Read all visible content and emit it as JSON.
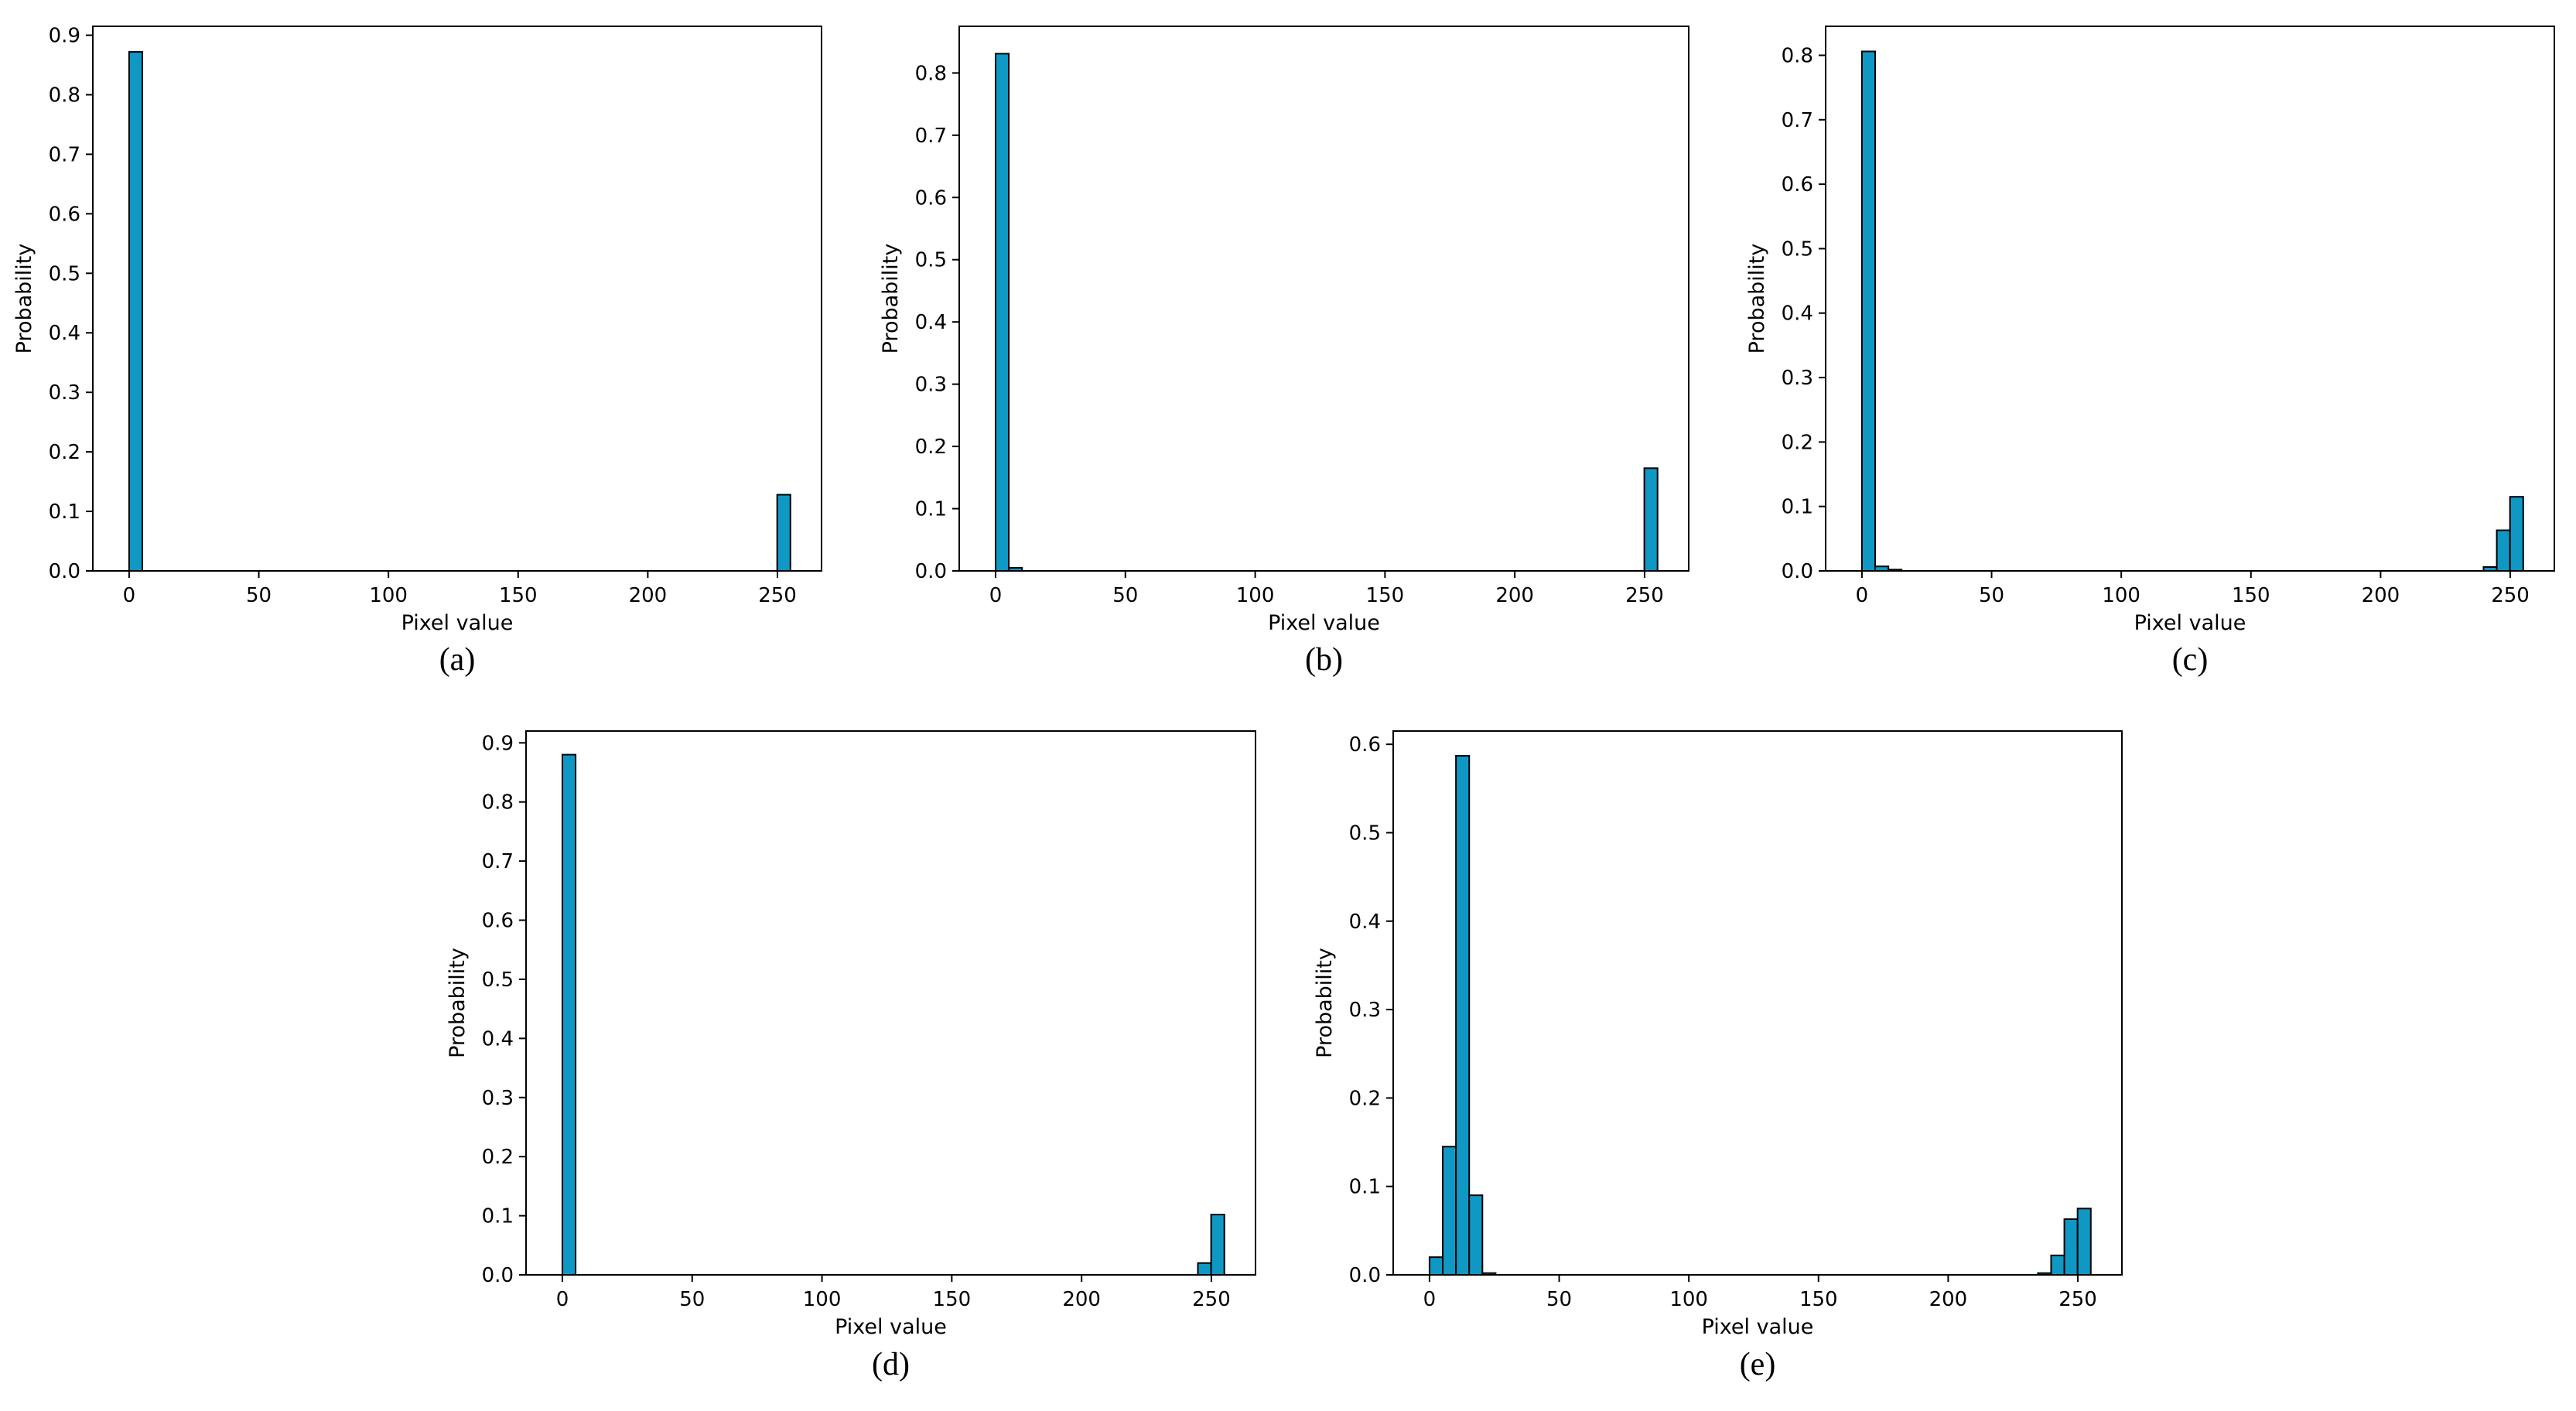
{
  "chart_data": [
    {
      "id": "a",
      "type": "bar",
      "caption": "(a)",
      "xlabel": "Pixel value",
      "ylabel": "Probability",
      "xlim": [
        -14,
        267
      ],
      "ylim": [
        0,
        0.915
      ],
      "xticks": [
        0,
        50,
        100,
        150,
        200,
        250
      ],
      "yticks": [
        0.0,
        0.1,
        0.2,
        0.3,
        0.4,
        0.5,
        0.6,
        0.7,
        0.8,
        0.9
      ],
      "bin_width": 5.1,
      "bin_starts": [
        0,
        249.9
      ],
      "values": [
        0.872,
        0.128
      ],
      "bar_color": "#0f98c4"
    },
    {
      "id": "b",
      "type": "bar",
      "caption": "(b)",
      "xlabel": "Pixel value",
      "ylabel": "Probability",
      "xlim": [
        -14,
        267
      ],
      "ylim": [
        0,
        0.875
      ],
      "xticks": [
        0,
        50,
        100,
        150,
        200,
        250
      ],
      "yticks": [
        0.0,
        0.1,
        0.2,
        0.3,
        0.4,
        0.5,
        0.6,
        0.7,
        0.8
      ],
      "bin_width": 5.1,
      "bin_starts": [
        0,
        5.1,
        249.9
      ],
      "values": [
        0.831,
        0.005,
        0.165
      ],
      "bar_color": "#0f98c4"
    },
    {
      "id": "c",
      "type": "bar",
      "caption": "(c)",
      "xlabel": "Pixel value",
      "ylabel": "Probability",
      "xlim": [
        -14,
        267
      ],
      "ylim": [
        0,
        0.845
      ],
      "xticks": [
        0,
        50,
        100,
        150,
        200,
        250
      ],
      "yticks": [
        0.0,
        0.1,
        0.2,
        0.3,
        0.4,
        0.5,
        0.6,
        0.7,
        0.8
      ],
      "bin_width": 5.1,
      "bin_starts": [
        0,
        5.1,
        10.2,
        239.7,
        244.8,
        249.9
      ],
      "values": [
        0.806,
        0.007,
        0.002,
        0.006,
        0.063,
        0.115
      ],
      "bar_color": "#0f98c4"
    },
    {
      "id": "d",
      "type": "bar",
      "caption": "(d)",
      "xlabel": "Pixel value",
      "ylabel": "Probability",
      "xlim": [
        -14,
        267
      ],
      "ylim": [
        0,
        0.92
      ],
      "xticks": [
        0,
        50,
        100,
        150,
        200,
        250
      ],
      "yticks": [
        0.0,
        0.1,
        0.2,
        0.3,
        0.4,
        0.5,
        0.6,
        0.7,
        0.8,
        0.9
      ],
      "bin_width": 5.1,
      "bin_starts": [
        0,
        244.8,
        249.9
      ],
      "values": [
        0.88,
        0.02,
        0.102
      ],
      "bar_color": "#0f98c4"
    },
    {
      "id": "e",
      "type": "bar",
      "caption": "(e)",
      "xlabel": "Pixel value",
      "ylabel": "Probability",
      "xlim": [
        -14,
        267
      ],
      "ylim": [
        0,
        0.615
      ],
      "xticks": [
        0,
        50,
        100,
        150,
        200,
        250
      ],
      "yticks": [
        0.0,
        0.1,
        0.2,
        0.3,
        0.4,
        0.5,
        0.6
      ],
      "bin_width": 5.1,
      "bin_starts": [
        0,
        5.1,
        10.2,
        15.3,
        20.4,
        234.6,
        239.7,
        244.8,
        249.9
      ],
      "values": [
        0.02,
        0.145,
        0.587,
        0.09,
        0.002,
        0.002,
        0.022,
        0.063,
        0.075
      ],
      "bar_color": "#0f98c4"
    }
  ]
}
